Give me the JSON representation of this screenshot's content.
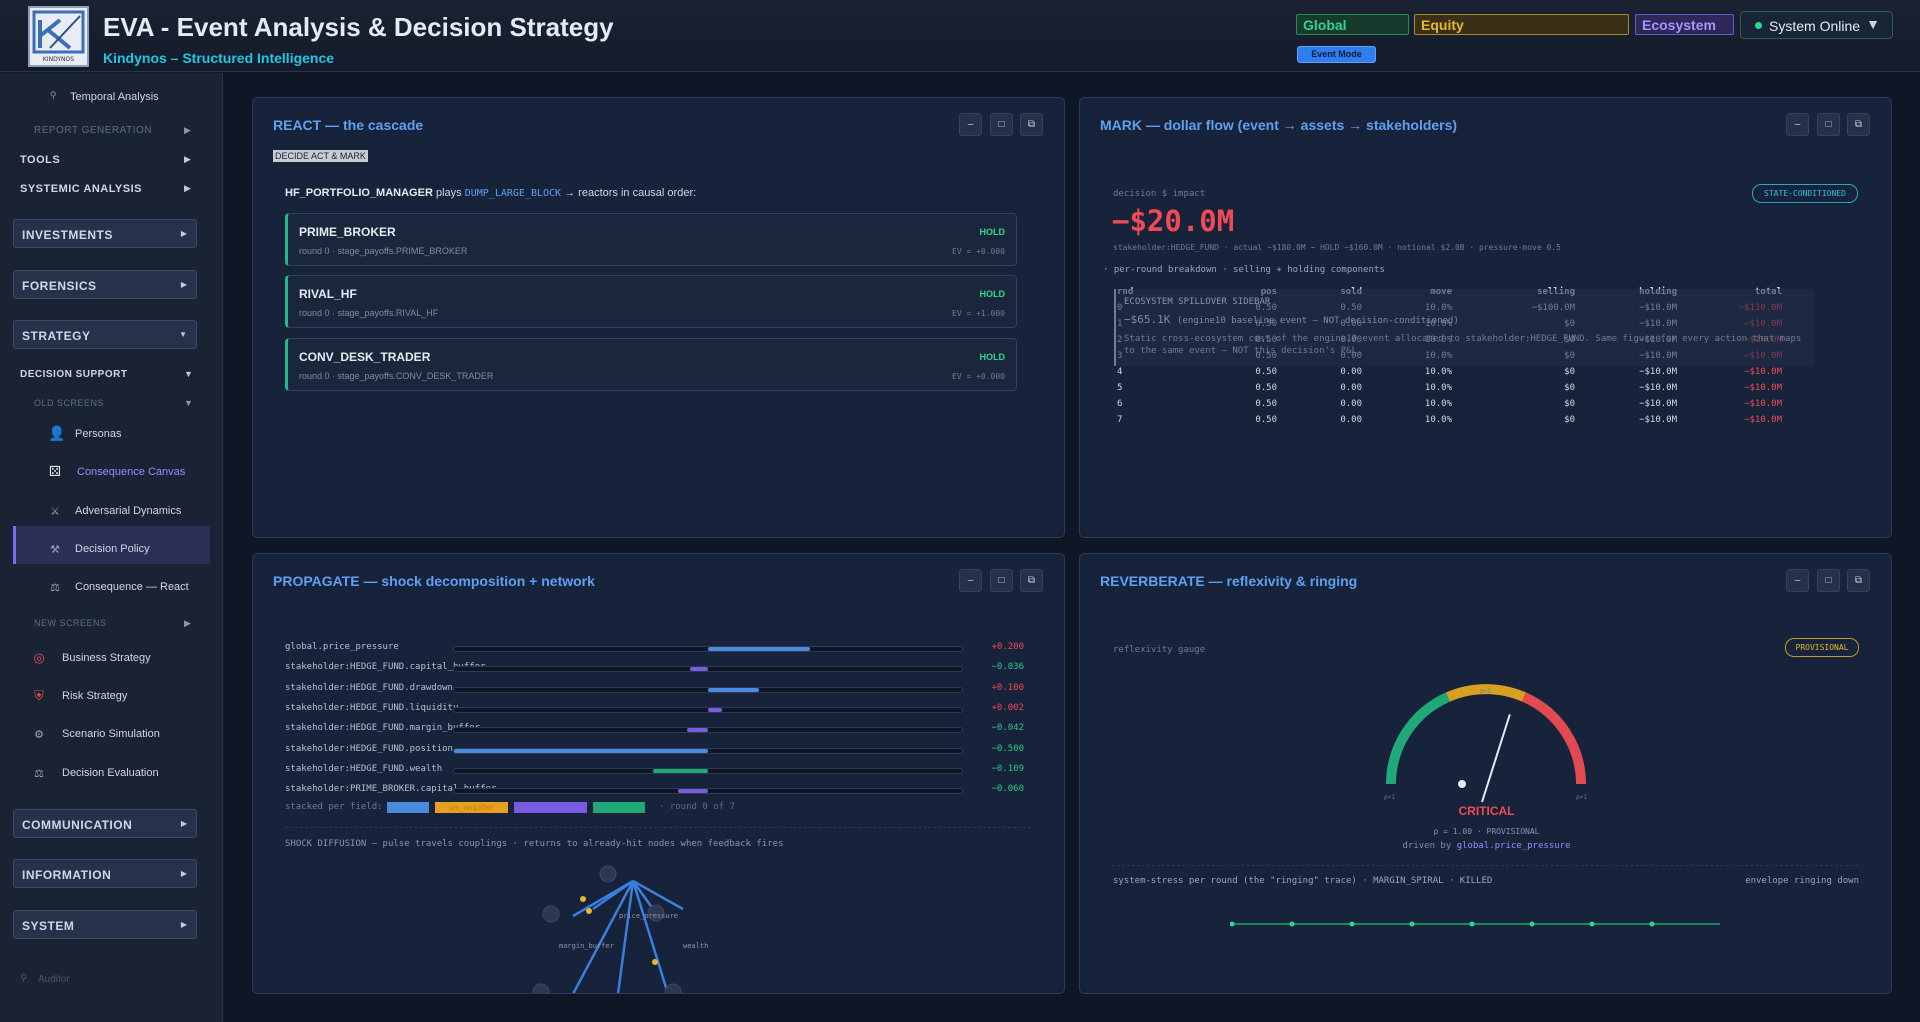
{
  "header": {
    "title": "EVA - Event Analysis & Decision Strategy",
    "subtitle": "Kindynos – Structured Intelligence",
    "logo_text": "KINDYNOS",
    "scope_global": "Global",
    "scope_equity": "Equity",
    "scope_ecosystem": "Ecosystem",
    "status": "System Online",
    "mode_button": "Event Mode"
  },
  "sidebar": {
    "temporal": "Temporal Analysis",
    "report_generation": "REPORT GENERATION",
    "tools": "TOOLS",
    "systemic": "SYSTEMIC ANALYSIS",
    "investments": "INVESTMENTS",
    "forensics": "FORENSICS",
    "strategy": "STRATEGY",
    "decision_support": "DECISION SUPPORT",
    "old_screens": "OLD SCREENS",
    "old_items": [
      "Personas",
      "Consequence Canvas",
      "Adversarial Dynamics",
      "Decision Policy",
      "Consequence — React"
    ],
    "new_screens": "NEW SCREENS",
    "new_items": [
      "Business Strategy",
      "Risk Strategy",
      "Scenario Simulation",
      "Decision Evaluation"
    ],
    "communication": "COMMUNICATION",
    "information": "INFORMATION",
    "system": "SYSTEM",
    "auditor": "Auditor"
  },
  "controls": {
    "minimize": "–",
    "maximize": "□",
    "popout": "⧉"
  },
  "react": {
    "title": "REACT — the cascade",
    "tag": "DECIDE ACT & MARK",
    "actor": "HF_PORTFOLIO_MANAGER",
    "plays": "plays",
    "action": "DUMP_LARGE_BLOCK",
    "suffix": "→ reactors in causal order:",
    "reactors": [
      {
        "name": "PRIME_BROKER",
        "sub": "round 0 · stage_payoffs.PRIME_BROKER",
        "status": "HOLD",
        "ev": "EV = +0.000"
      },
      {
        "name": "RIVAL_HF",
        "sub": "round 0 · stage_payoffs.RIVAL_HF",
        "status": "HOLD",
        "ev": "EV = +1.000"
      },
      {
        "name": "CONV_DESK_TRADER",
        "sub": "round 0 · stage_payoffs.CONV_DESK_TRADER",
        "status": "HOLD",
        "ev": "EV = +0.000"
      }
    ]
  },
  "mark": {
    "title": "MARK — dollar flow (event → assets → stakeholders)",
    "impact_label": "decision $ impact",
    "impact_value": "−$20.0M",
    "badge": "STATE-CONDITIONED",
    "meta": "stakeholder:HEDGE_FUND · actual −$180.0M − HOLD −$160.0M · notional $2.0B · pressure-move 0.5",
    "per_round": "·  per-round breakdown · selling + holding components",
    "headers": [
      "rnd",
      "pos",
      "sold",
      "move",
      "selling",
      "holding",
      "total"
    ],
    "rows": [
      [
        "0",
        "0.50",
        "0.50",
        "10.0%",
        "−$100.0M",
        "−$10.0M",
        "−$110.0M"
      ],
      [
        "1",
        "0.50",
        "0.00",
        "10.0%",
        "$0",
        "−$10.0M",
        "−$10.0M"
      ],
      [
        "2",
        "0.50",
        "0.00",
        "10.0%",
        "$0",
        "−$10.0M",
        "−$10.0M"
      ],
      [
        "3",
        "0.50",
        "0.00",
        "10.0%",
        "$0",
        "−$10.0M",
        "−$10.0M"
      ],
      [
        "4",
        "0.50",
        "0.00",
        "10.0%",
        "$0",
        "−$10.0M",
        "−$10.0M"
      ],
      [
        "5",
        "0.50",
        "0.00",
        "10.0%",
        "$0",
        "−$10.0M",
        "−$10.0M"
      ],
      [
        "6",
        "0.50",
        "0.00",
        "10.0%",
        "$0",
        "−$10.0M",
        "−$10.0M"
      ],
      [
        "7",
        "0.50",
        "0.00",
        "10.0%",
        "$0",
        "−$10.0M",
        "−$10.0M"
      ]
    ],
    "overlay_title": "ECOSYSTEM SPILLOVER SIDEBAR",
    "overlay_value": "−$65.1K",
    "overlay_note": "(engine10 baseline event — NOT decision-conditioned)",
    "overlay_desc": "Static cross-ecosystem cost of the engine10 event allocated to stakeholder:HEDGE_FUND. Same figure for every action that maps to the same event — NOT this decision's P&L."
  },
  "propagate": {
    "title": "PROPAGATE — shock decomposition + network",
    "rows": [
      {
        "label": "global.price_pressure",
        "value": "+0.200",
        "fill": 0.2,
        "color": "#4a8be0",
        "vcolor": "#f04a55"
      },
      {
        "label": "stakeholder:HEDGE_FUND.capital_buffer",
        "value": "−0.036",
        "fill": -0.036,
        "color": "#7a5ae0",
        "vcolor": "#2ec88a"
      },
      {
        "label": "stakeholder:HEDGE_FUND.drawdown",
        "value": "+0.100",
        "fill": 0.1,
        "color": "#4a8be0",
        "vcolor": "#f04a55"
      },
      {
        "label": "stakeholder:HEDGE_FUND.liquidity",
        "value": "+0.002",
        "fill": 0.002,
        "color": "#7a5ae0",
        "vcolor": "#f04a55"
      },
      {
        "label": "stakeholder:HEDGE_FUND.margin_buffer",
        "value": "−0.042",
        "fill": -0.042,
        "color": "#7a5ae0",
        "vcolor": "#2ec88a"
      },
      {
        "label": "stakeholder:HEDGE_FUND.position",
        "value": "−0.500",
        "fill": -0.5,
        "color": "#4a8be0",
        "vcolor": "#2ec88a"
      },
      {
        "label": "stakeholder:HEDGE_FUND.wealth",
        "value": "−0.109",
        "fill": -0.109,
        "color": "#20a878",
        "vcolor": "#2ec88a"
      },
      {
        "label": "stakeholder:PRIME_BROKER.capital_buffer",
        "value": "−0.060",
        "fill": -0.06,
        "color": "#7a5ae0",
        "vcolor": "#2ec88a"
      }
    ],
    "legend_label": "stacked per field:",
    "legend_items": [
      "",
      "ws_amplifier",
      "",
      ""
    ],
    "legend_colors": [
      "#4a8be0",
      "#e8a020",
      "#7a5ae0",
      "#20a878"
    ],
    "round": "· round 0 of 7",
    "diffusion": "SHOCK DIFFUSION — pulse travels couplings · returns to already-hit nodes when feedback fires",
    "net_labels": [
      "price_pressure",
      "margin_buffer",
      "wealth"
    ]
  },
  "reverberate": {
    "title": "REVERBERATE — reflexivity & ringing",
    "gauge_label": "reflexivity gauge",
    "badge": "PROVISIONAL",
    "gauge_value": 1.0,
    "gauge_ticks": [
      "ρ<1",
      "ρ≈1",
      "ρ>1"
    ],
    "critical": "CRITICAL",
    "rho": "ρ = 1.00 · PROVISIONAL",
    "driven_by": "driven by",
    "driver": "global.price_pressure",
    "stress": "system-stress per round (the \"ringing\" trace) · MARGIN_SPIRAL · KILLED",
    "envelope": "envelope ringing down",
    "ring_values": [
      0,
      0,
      0,
      0,
      0,
      0,
      0,
      0
    ]
  }
}
